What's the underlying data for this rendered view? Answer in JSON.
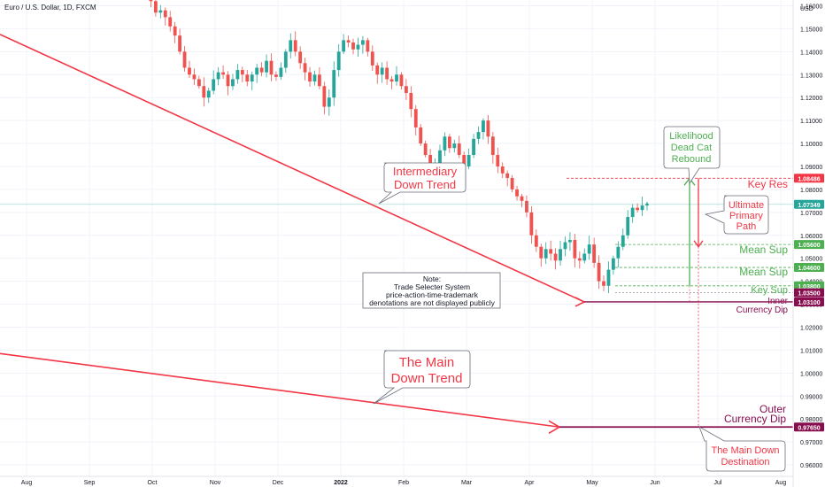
{
  "header": {
    "symbol_title": "Euro / U.S. Dollar, 1D, FXCM",
    "currency": "USD"
  },
  "chart_data": {
    "type": "candlestick",
    "title": "Euro / U.S. Dollar, 1D, FXCM",
    "ylabel": "USD",
    "ylim": [
      0.955,
      1.1625
    ],
    "y_ticks": [
      0.96,
      0.97,
      0.98,
      0.99,
      1.0,
      1.01,
      1.02,
      1.03,
      1.04,
      1.05,
      1.06,
      1.07,
      1.08,
      1.09,
      1.1,
      1.11,
      1.12,
      1.13,
      1.14,
      1.15,
      1.16
    ],
    "x_ticks": [
      "Aug",
      "Sep",
      "Oct",
      "Nov",
      "Dec",
      "2022",
      "Feb",
      "Mar",
      "Apr",
      "May",
      "Jun",
      "Jul",
      "Aug"
    ],
    "current_price": 1.07349,
    "close_path": [
      1.165,
      1.162,
      1.157,
      1.158,
      1.155,
      1.151,
      1.147,
      1.14,
      1.133,
      1.13,
      1.128,
      1.125,
      1.12,
      1.123,
      1.128,
      1.131,
      1.13,
      1.125,
      1.128,
      1.132,
      1.13,
      1.127,
      1.13,
      1.133,
      1.131,
      1.136,
      1.13,
      1.129,
      1.133,
      1.14,
      1.145,
      1.14,
      1.135,
      1.131,
      1.127,
      1.13,
      1.125,
      1.116,
      1.12,
      1.132,
      1.14,
      1.145,
      1.144,
      1.141,
      1.143,
      1.145,
      1.14,
      1.134,
      1.13,
      1.133,
      1.128,
      1.127,
      1.13,
      1.125,
      1.122,
      1.115,
      1.107,
      1.1,
      1.095,
      1.088,
      1.09,
      1.097,
      1.103,
      1.098,
      1.1,
      1.095,
      1.09,
      1.095,
      1.102,
      1.105,
      1.11,
      1.103,
      1.095,
      1.09,
      1.087,
      1.085,
      1.08,
      1.077,
      1.075,
      1.07,
      1.06,
      1.055,
      1.05,
      1.054,
      1.052,
      1.049,
      1.054,
      1.057,
      1.058,
      1.05,
      1.049,
      1.052,
      1.056,
      1.048,
      1.04,
      1.038,
      1.045,
      1.05,
      1.055,
      1.06,
      1.068,
      1.072,
      1.071,
      1.073,
      1.07349
    ],
    "levels": [
      {
        "label": "Key Res",
        "value": 1.08486,
        "value_text": "1.08486",
        "color": "#f23645"
      },
      {
        "label": "Mean Sup",
        "value": 1.056,
        "value_text": "1.05600",
        "color": "#4caf50"
      },
      {
        "label": "Mean Sup",
        "value": 1.046,
        "value_text": "1.04600",
        "color": "#4caf50"
      },
      {
        "label": "Key Sup",
        "value": 1.038,
        "value_text": "1.03800",
        "color": "#4caf50"
      },
      {
        "label": "Inner",
        "value": 1.035,
        "value_text": "1.03500",
        "color": "#880e4f"
      },
      {
        "label": "Currency Dip",
        "value": 1.031,
        "value_text": "1.03100",
        "color": "#880e4f"
      },
      {
        "label": "Outer Currency Dip",
        "value": 0.9765,
        "value_text": "0.97650",
        "color": "#880e4f"
      }
    ],
    "colors": {
      "up": "#26a69a",
      "down": "#ef5350",
      "trend": "#f23645",
      "support": "#4caf50",
      "dip": "#880e4f",
      "price_line": "#26a69a"
    }
  },
  "annotations": {
    "intermediary_trend": [
      "Intermediary",
      "Down Trend"
    ],
    "main_trend": [
      "The Main",
      "Down Trend"
    ],
    "likelihood": [
      "Likelihood",
      "Dead Cat",
      "Rebound"
    ],
    "ultimate": [
      "Ultimate",
      "Primary",
      "Path"
    ],
    "destination": [
      "The Main Down",
      "Destination"
    ],
    "note": [
      "Note:",
      "Trade Selecter System",
      "price-action-time-trademark",
      "denotations are not displayed publicly"
    ],
    "inner_label": "Inner",
    "currency_dip_label": "Currency Dip",
    "outer_label": [
      "Outer",
      "Currency Dip"
    ]
  }
}
